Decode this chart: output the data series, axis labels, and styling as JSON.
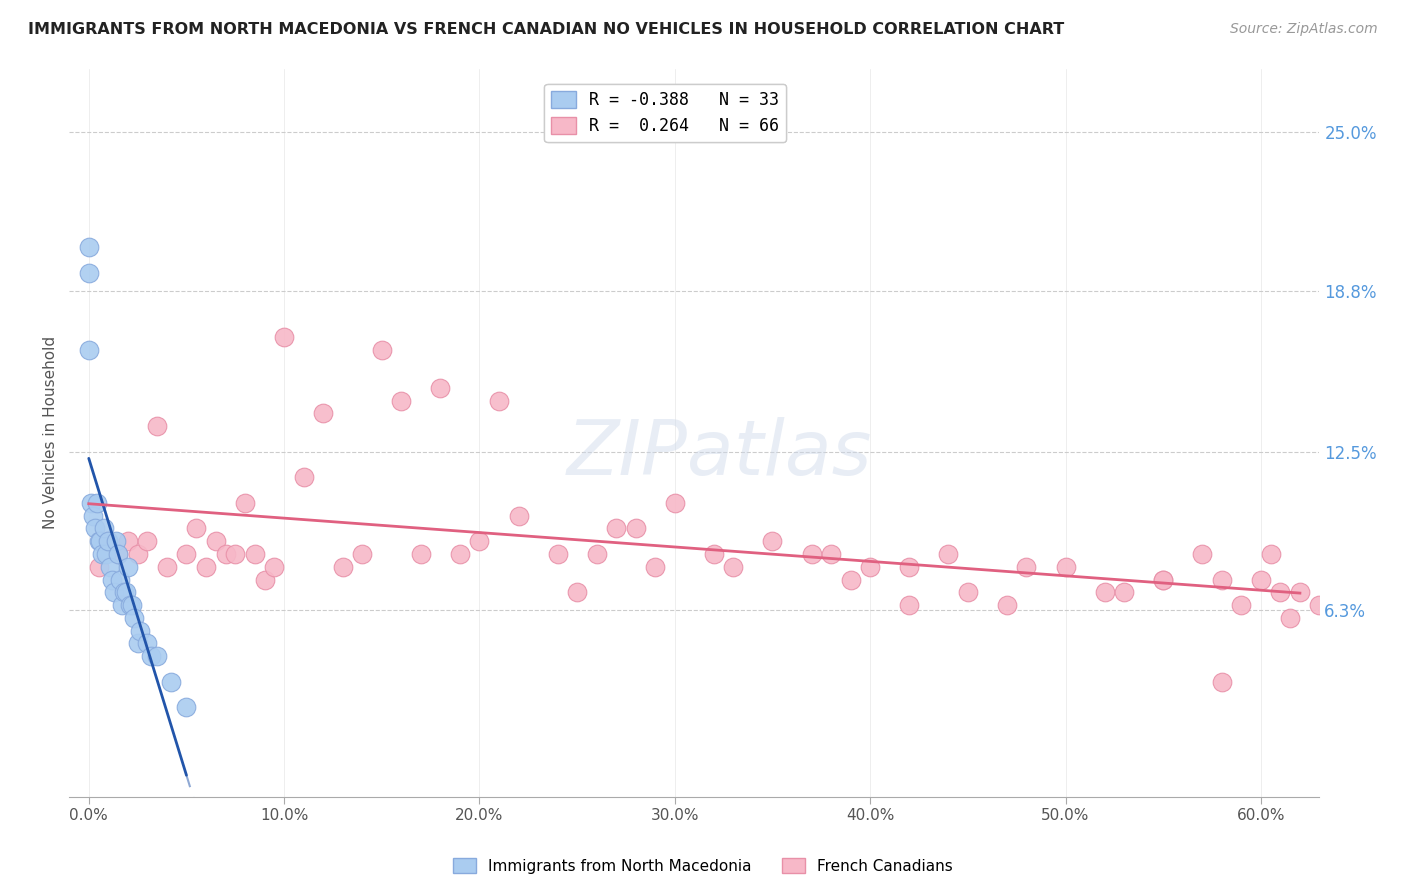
{
  "title": "IMMIGRANTS FROM NORTH MACEDONIA VS FRENCH CANADIAN NO VEHICLES IN HOUSEHOLD CORRELATION CHART",
  "source": "Source: ZipAtlas.com",
  "ylabel": "No Vehicles in Household",
  "x_tick_labels": [
    "0.0%",
    "10.0%",
    "20.0%",
    "30.0%",
    "40.0%",
    "50.0%",
    "60.0%"
  ],
  "x_tick_values": [
    0.0,
    10.0,
    20.0,
    30.0,
    40.0,
    50.0,
    60.0
  ],
  "y_tick_labels": [
    "6.3%",
    "12.5%",
    "18.8%",
    "25.0%"
  ],
  "y_tick_values": [
    6.3,
    12.5,
    18.8,
    25.0
  ],
  "xlim": [
    -1.0,
    63.0
  ],
  "ylim": [
    -1.0,
    27.5
  ],
  "series1_color": "#aaccf0",
  "series1_edge": "#88aadd",
  "series2_color": "#f7b8c8",
  "series2_edge": "#e890a8",
  "trendline1_color": "#2255aa",
  "trendline2_color": "#e06080",
  "watermark": "ZIPatlas",
  "watermark_color": "#ccd8ea",
  "blue_scatter_x": [
    0.0,
    0.0,
    0.0,
    0.1,
    0.2,
    0.3,
    0.4,
    0.5,
    0.6,
    0.7,
    0.8,
    0.9,
    1.0,
    1.1,
    1.2,
    1.3,
    1.4,
    1.5,
    1.6,
    1.7,
    1.8,
    1.9,
    2.0,
    2.1,
    2.2,
    2.3,
    2.5,
    2.6,
    3.0,
    3.2,
    3.5,
    4.2,
    5.0
  ],
  "blue_scatter_y": [
    20.5,
    19.5,
    16.5,
    10.5,
    10.0,
    9.5,
    10.5,
    9.0,
    9.0,
    8.5,
    9.5,
    8.5,
    9.0,
    8.0,
    7.5,
    7.0,
    9.0,
    8.5,
    7.5,
    6.5,
    7.0,
    7.0,
    8.0,
    6.5,
    6.5,
    6.0,
    5.0,
    5.5,
    5.0,
    4.5,
    4.5,
    3.5,
    2.5
  ],
  "pink_scatter_x": [
    0.5,
    1.0,
    1.5,
    2.0,
    2.5,
    3.0,
    3.5,
    4.0,
    5.0,
    5.5,
    6.0,
    6.5,
    7.0,
    7.5,
    8.0,
    8.5,
    9.0,
    9.5,
    10.0,
    11.0,
    12.0,
    13.0,
    14.0,
    15.0,
    16.0,
    17.0,
    18.0,
    19.0,
    20.0,
    21.0,
    22.0,
    24.0,
    25.0,
    26.0,
    27.0,
    28.0,
    29.0,
    30.0,
    32.0,
    33.0,
    35.0,
    37.0,
    38.0,
    39.0,
    40.0,
    42.0,
    44.0,
    45.0,
    48.0,
    50.0,
    52.0,
    53.0,
    55.0,
    57.0,
    58.0,
    59.0,
    60.0,
    61.0,
    62.0,
    63.0,
    42.0,
    47.0,
    55.0,
    58.0,
    60.5,
    61.5
  ],
  "pink_scatter_y": [
    8.0,
    9.0,
    8.5,
    9.0,
    8.5,
    9.0,
    13.5,
    8.0,
    8.5,
    9.5,
    8.0,
    9.0,
    8.5,
    8.5,
    10.5,
    8.5,
    7.5,
    8.0,
    17.0,
    11.5,
    14.0,
    8.0,
    8.5,
    16.5,
    14.5,
    8.5,
    15.0,
    8.5,
    9.0,
    14.5,
    10.0,
    8.5,
    7.0,
    8.5,
    9.5,
    9.5,
    8.0,
    10.5,
    8.5,
    8.0,
    9.0,
    8.5,
    8.5,
    7.5,
    8.0,
    8.0,
    8.5,
    7.0,
    8.0,
    8.0,
    7.0,
    7.0,
    7.5,
    8.5,
    7.5,
    6.5,
    7.5,
    7.0,
    7.0,
    6.5,
    6.5,
    6.5,
    7.5,
    3.5,
    8.5,
    6.0
  ],
  "R1": -0.388,
  "N1": 33,
  "R2": 0.264,
  "N2": 66
}
